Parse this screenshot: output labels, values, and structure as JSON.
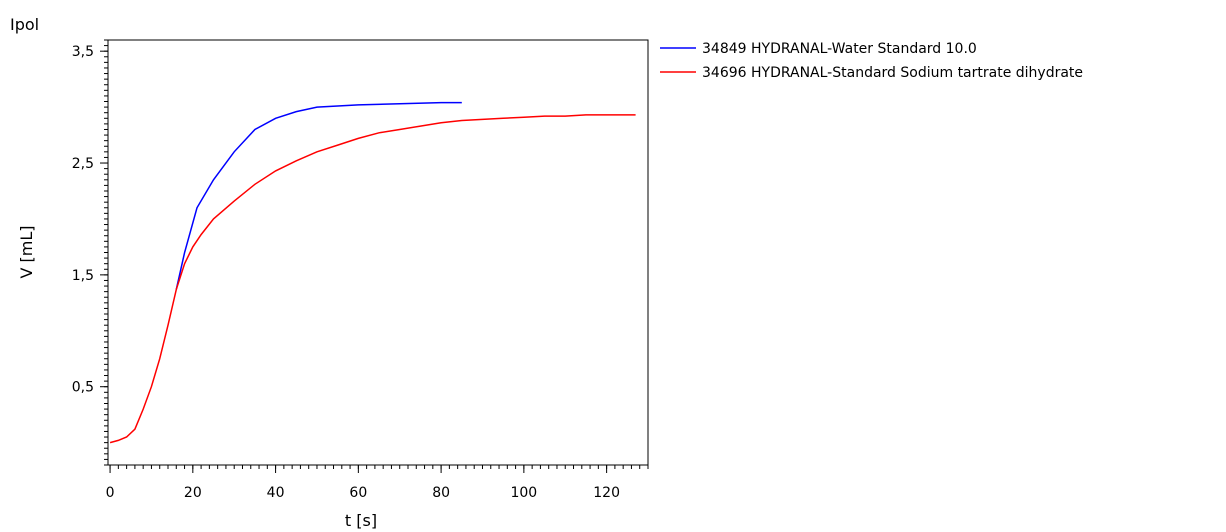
{
  "chart_data": {
    "type": "line",
    "title": "Ipol",
    "xlabel": "t [s]",
    "ylabel": "V [mL]",
    "xlim": [
      -0.5,
      130
    ],
    "ylim": [
      -0.2,
      3.6
    ],
    "x_ticks": [
      0,
      20,
      40,
      60,
      80,
      100,
      120
    ],
    "x_tick_labels": [
      "0",
      "20",
      "40",
      "60",
      "80",
      "100",
      "120"
    ],
    "y_ticks": [
      0.5,
      1.5,
      2.5,
      3.5
    ],
    "y_tick_labels": [
      "0,5",
      "1,5",
      "2,5",
      "3,5"
    ],
    "grid": false,
    "legend_position": "right",
    "series": [
      {
        "name": "34849 HYDRANAL-Water Standard 10.0",
        "color": "#0000ff",
        "x": [
          16,
          18,
          21,
          25,
          30,
          35,
          40,
          45,
          50,
          55,
          60,
          70,
          80,
          85
        ],
        "y": [
          1.37,
          1.7,
          2.1,
          2.35,
          2.6,
          2.8,
          2.9,
          2.96,
          3.0,
          3.01,
          3.02,
          3.03,
          3.04,
          3.04
        ]
      },
      {
        "name": "34696 HYDRANAL-Standard Sodium tartrate dihydrate",
        "color": "#ff0000",
        "x": [
          0,
          2,
          4,
          6,
          8,
          10,
          12,
          14,
          16,
          18,
          20,
          22,
          25,
          30,
          35,
          40,
          45,
          50,
          55,
          60,
          65,
          70,
          75,
          80,
          85,
          90,
          95,
          100,
          105,
          110,
          115,
          120,
          125,
          127
        ],
        "y": [
          0.0,
          0.02,
          0.05,
          0.12,
          0.3,
          0.5,
          0.75,
          1.05,
          1.37,
          1.6,
          1.75,
          1.86,
          2.0,
          2.16,
          2.31,
          2.43,
          2.52,
          2.6,
          2.66,
          2.72,
          2.77,
          2.8,
          2.83,
          2.86,
          2.88,
          2.89,
          2.9,
          2.91,
          2.92,
          2.92,
          2.93,
          2.93,
          2.93,
          2.93
        ]
      }
    ]
  }
}
